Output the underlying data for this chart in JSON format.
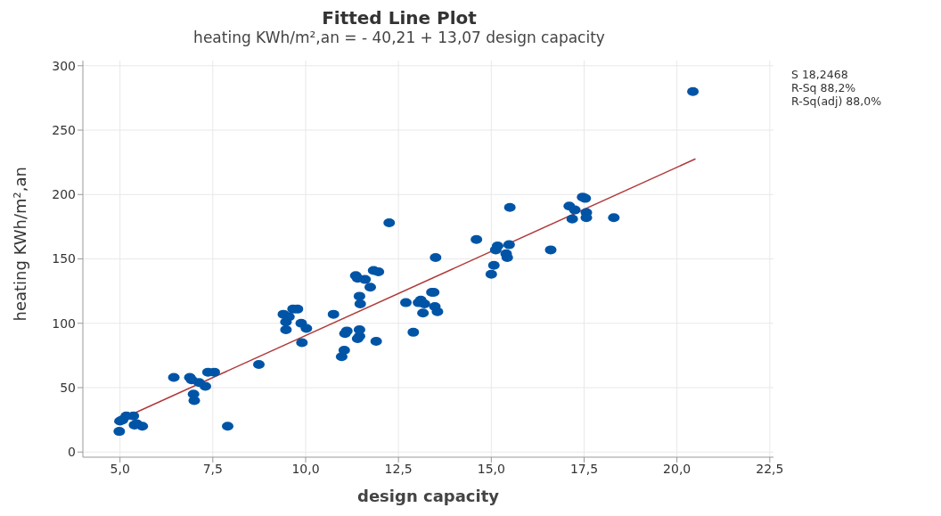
{
  "chart_data": {
    "type": "scatter",
    "title": "Fitted Line Plot",
    "subtitle": "heating KWh/m²,an = - 40,21 + 13,07 design capacity",
    "xlabel": "design capacity",
    "ylabel": "heating KWh/m²,an",
    "xlim": [
      4,
      22.6
    ],
    "ylim": [
      -4,
      304
    ],
    "xticks": [
      {
        "value": 5,
        "label": "5,0"
      },
      {
        "value": 7.5,
        "label": "7,5"
      },
      {
        "value": 10,
        "label": "10,0"
      },
      {
        "value": 12.5,
        "label": "12,5"
      },
      {
        "value": 15,
        "label": "15,0"
      },
      {
        "value": 17.5,
        "label": "17,5"
      },
      {
        "value": 20,
        "label": "20,0"
      },
      {
        "value": 22.5,
        "label": "22,5"
      }
    ],
    "yticks": [
      0,
      50,
      100,
      150,
      200,
      250,
      300
    ],
    "grid": true,
    "marker": "circle",
    "annotations": [
      "S 18,2468",
      "R-Sq 88,2%",
      "R-Sq(adj) 88,0%"
    ],
    "series": [
      {
        "type": "scatter",
        "color": "#0054a6",
        "x": [
          4.98,
          5.0,
          5.07,
          5.17,
          5.36,
          5.39,
          5.45,
          5.6,
          6.45,
          6.88,
          6.93,
          6.98,
          7.0,
          7.13,
          7.3,
          7.37,
          7.54,
          7.9,
          8.74,
          9.4,
          9.47,
          9.47,
          9.55,
          9.66,
          9.78,
          9.88,
          9.9,
          10.02,
          10.75,
          10.97,
          11.04,
          11.06,
          11.11,
          11.35,
          11.4,
          11.4,
          11.45,
          11.45,
          11.45,
          11.47,
          11.6,
          11.74,
          11.83,
          11.96,
          11.9,
          12.25,
          12.7,
          12.9,
          13.04,
          13.1,
          13.16,
          13.2,
          13.4,
          13.45,
          13.48,
          13.55,
          13.5,
          14.6,
          15.0,
          15.07,
          15.12,
          15.17,
          15.4,
          15.43,
          15.48,
          15.5,
          16.6,
          17.1,
          17.18,
          17.25,
          17.46,
          17.53,
          17.56,
          17.56,
          18.3,
          20.43
        ],
        "values": [
          16,
          24,
          25,
          28,
          28,
          21,
          22,
          20,
          58,
          58,
          56,
          45,
          40,
          54,
          51,
          62,
          62,
          20,
          68,
          107,
          101,
          95,
          105,
          111,
          111,
          100,
          85,
          96,
          107,
          74,
          79,
          92,
          94,
          137,
          135,
          88,
          95,
          90,
          121,
          115,
          134,
          128,
          141,
          140,
          86,
          178,
          116,
          93,
          116,
          118,
          108,
          115,
          124,
          124,
          113,
          109,
          151,
          165,
          138,
          145,
          157,
          160,
          154,
          151,
          161,
          190,
          157,
          191,
          181,
          188,
          198,
          197,
          186,
          182,
          182,
          280
        ]
      },
      {
        "type": "line",
        "color": "#b03a3a",
        "x": [
          4.85,
          20.5
        ],
        "values": [
          23.2,
          227.7
        ],
        "marker": "none"
      }
    ]
  }
}
